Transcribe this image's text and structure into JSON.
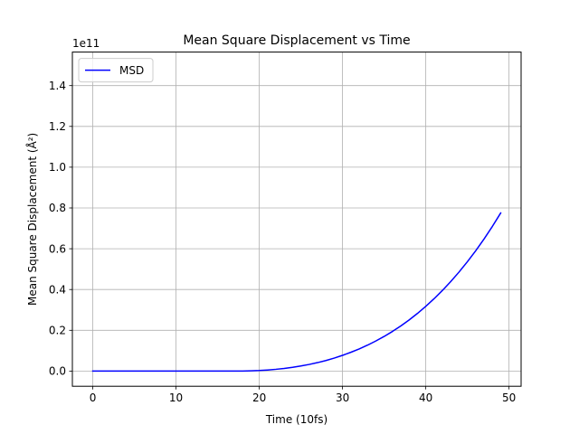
{
  "chart_data": {
    "type": "line",
    "title": "Mean Square Displacement vs Time",
    "xlabel": "Time (10fs)",
    "ylabel": "Mean Square Displacement (Å²)",
    "y_offset_label": "1e11",
    "y_scale_factor": 100000000000,
    "xlim": [
      -2.45,
      51.45
    ],
    "ylim": [
      -0.0745,
      1.5645
    ],
    "xticks": [
      0,
      10,
      20,
      30,
      40,
      50
    ],
    "xtick_labels": [
      "0",
      "10",
      "20",
      "30",
      "40",
      "50"
    ],
    "yticks": [
      0.0,
      0.2,
      0.4,
      0.6,
      0.8,
      1.0,
      1.2,
      1.4
    ],
    "ytick_labels": [
      "0.0",
      "0.2",
      "0.4",
      "0.6",
      "0.8",
      "1.0",
      "1.2",
      "1.4"
    ],
    "grid": true,
    "legend": {
      "placement": "upper-left"
    },
    "series": [
      {
        "name": "MSD",
        "color": "#0000ff",
        "x": [
          0,
          1,
          2,
          3,
          4,
          5,
          6,
          7,
          8,
          9,
          10,
          11,
          12,
          13,
          14,
          15,
          16,
          17,
          18,
          19,
          20,
          21,
          22,
          23,
          24,
          25,
          26,
          27,
          28,
          29,
          30,
          31,
          32,
          33,
          34,
          35,
          36,
          37,
          38,
          39,
          40,
          41,
          42,
          43,
          44,
          45,
          46,
          47,
          48,
          49
        ],
        "y": [
          0,
          0,
          0,
          0,
          0,
          0,
          0,
          0,
          0,
          0,
          0,
          0,
          0,
          0,
          0,
          0,
          0,
          0,
          0.0003,
          0.0012,
          0.0028,
          0.0053,
          0.0087,
          0.013,
          0.0184,
          0.0249,
          0.0325,
          0.0415,
          0.0518,
          0.0637,
          0.0771,
          0.0921,
          0.1086,
          0.1271,
          0.1475,
          0.1699,
          0.1944,
          0.2213,
          0.2507,
          0.2827,
          0.3174,
          0.355,
          0.3955,
          0.4391,
          0.486,
          0.5363,
          0.5903,
          0.6479,
          0.7095,
          0.7752
        ]
      }
    ]
  }
}
